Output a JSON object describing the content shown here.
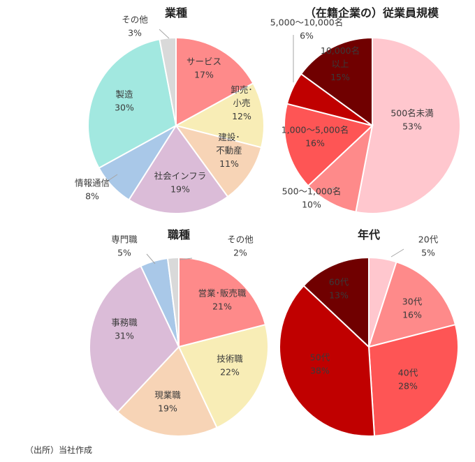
{
  "source_note": "（出所）当社作成",
  "chart_data": [
    {
      "type": "pie",
      "title": "業種",
      "slices": [
        {
          "label": "サービス",
          "value": 17,
          "value_label": "17%",
          "color": "#fe8a8a",
          "text": "#333333"
        },
        {
          "label": "卸売・小売",
          "value": 12,
          "value_label": "12%",
          "color": "#f8edb6",
          "text": "#333333"
        },
        {
          "label": "建設・不動産",
          "value": 11,
          "value_label": "11%",
          "color": "#f7d4b6",
          "text": "#333333"
        },
        {
          "label": "社会インフラ",
          "value": 19,
          "value_label": "19%",
          "color": "#dbbcd8",
          "text": "#333333"
        },
        {
          "label": "情報通信",
          "value": 8,
          "value_label": "8%",
          "color": "#a9c8e8",
          "text": "#333333"
        },
        {
          "label": "製造",
          "value": 30,
          "value_label": "30%",
          "color": "#a2e8e0",
          "text": "#333333"
        },
        {
          "label": "その他",
          "value": 3,
          "value_label": "3%",
          "color": "#d9d9d9",
          "text": "#333333"
        }
      ]
    },
    {
      "type": "pie",
      "title": "（在籍企業の）従業員規模",
      "slices": [
        {
          "label": "500名未満",
          "value": 53,
          "value_label": "53%",
          "color": "#ffc7ce",
          "text": "#333333"
        },
        {
          "label": "500～1,000名",
          "value": 10,
          "value_label": "10%",
          "color": "#fe8a8a",
          "text": "#333333"
        },
        {
          "label": "1,000～5,000名",
          "value": 16,
          "value_label": "16%",
          "color": "#fe5555",
          "text": "#333333"
        },
        {
          "label": "5,000～10,000名",
          "value": 6,
          "value_label": "6%",
          "color": "#c00000",
          "text": "#333333"
        },
        {
          "label": "10,000名以上",
          "value": 15,
          "value_label": "15%",
          "color": "#700000",
          "text": "#ffffff"
        }
      ]
    },
    {
      "type": "pie",
      "title": "職種",
      "slices": [
        {
          "label": "営業・販売職",
          "value": 21,
          "value_label": "21%",
          "color": "#fe8a8a",
          "text": "#333333"
        },
        {
          "label": "技術職",
          "value": 22,
          "value_label": "22%",
          "color": "#f8edb6",
          "text": "#333333"
        },
        {
          "label": "現業職",
          "value": 19,
          "value_label": "19%",
          "color": "#f7d4b6",
          "text": "#333333"
        },
        {
          "label": "事務職",
          "value": 31,
          "value_label": "31%",
          "color": "#dbbcd8",
          "text": "#333333"
        },
        {
          "label": "専門職",
          "value": 5,
          "value_label": "5%",
          "color": "#a9c8e8",
          "text": "#333333"
        },
        {
          "label": "その他",
          "value": 2,
          "value_label": "2%",
          "color": "#d9d9d9",
          "text": "#333333"
        }
      ]
    },
    {
      "type": "pie",
      "title": "年代",
      "slices": [
        {
          "label": "20代",
          "value": 5,
          "value_label": "5%",
          "color": "#ffc7ce",
          "text": "#333333"
        },
        {
          "label": "30代",
          "value": 16,
          "value_label": "16%",
          "color": "#fe8a8a",
          "text": "#333333"
        },
        {
          "label": "40代",
          "value": 28,
          "value_label": "28%",
          "color": "#fe5555",
          "text": "#333333"
        },
        {
          "label": "50代",
          "value": 38,
          "value_label": "38%",
          "color": "#c00000",
          "text": "#ffffff"
        },
        {
          "label": "60代",
          "value": 13,
          "value_label": "13%",
          "color": "#700000",
          "text": "#ffffff"
        }
      ]
    }
  ]
}
